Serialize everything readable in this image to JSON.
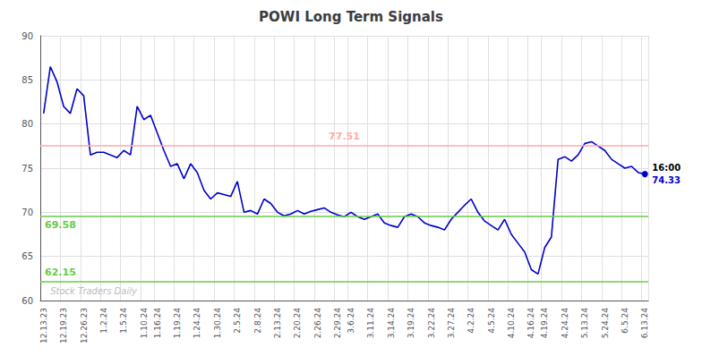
{
  "chart_data": {
    "type": "line",
    "title": "POWI Long Term Signals",
    "color": "#0000cc",
    "categories": [
      "12.13.23",
      null,
      null,
      "12.19.23",
      null,
      null,
      "12.26.23",
      null,
      null,
      "1.2.24",
      null,
      null,
      "1.5.24",
      null,
      null,
      "1.10.24",
      null,
      "1.16.24",
      null,
      null,
      "1.19.24",
      null,
      null,
      "1.24.24",
      null,
      null,
      "1.30.24",
      null,
      null,
      "2.5.24",
      null,
      null,
      "2.8.24",
      null,
      null,
      "2.13.24",
      null,
      null,
      "2.20.24",
      null,
      null,
      "2.26.24",
      null,
      null,
      "2.29.24",
      null,
      "3.6.24",
      null,
      null,
      "3.11.24",
      null,
      null,
      "3.14.24",
      null,
      null,
      "3.19.24",
      null,
      null,
      "3.22.24",
      null,
      null,
      "3.27.24",
      null,
      null,
      "4.2.24",
      null,
      null,
      "4.5.24",
      null,
      null,
      "4.10.24",
      null,
      null,
      "4.16.24",
      null,
      "4.19.24",
      null,
      null,
      "4.24.24",
      null,
      null,
      "5.13.24",
      null,
      null,
      "5.24.24",
      null,
      null,
      "6.5.24",
      null,
      null,
      "6.13.24"
    ],
    "values": [
      81.2,
      86.5,
      84.8,
      82.0,
      81.2,
      84.0,
      83.2,
      76.5,
      76.8,
      76.8,
      76.5,
      76.2,
      77.0,
      76.5,
      82.0,
      80.5,
      81.0,
      79.0,
      77.0,
      75.2,
      75.5,
      73.8,
      75.5,
      74.5,
      72.5,
      71.5,
      72.2,
      72.0,
      71.8,
      73.5,
      70.0,
      70.2,
      69.8,
      71.5,
      71.0,
      70.0,
      69.6,
      69.8,
      70.2,
      69.8,
      70.1,
      70.3,
      70.5,
      70.0,
      69.7,
      69.5,
      70.0,
      69.5,
      69.2,
      69.5,
      69.8,
      68.8,
      68.5,
      68.3,
      69.5,
      69.8,
      69.5,
      68.8,
      68.5,
      68.3,
      68.0,
      69.2,
      70.0,
      70.8,
      71.5,
      70.0,
      69.0,
      68.5,
      68.0,
      69.2,
      67.5,
      66.5,
      65.5,
      63.5,
      63.0,
      66.0,
      67.2,
      76.0,
      76.3,
      75.8,
      76.5,
      77.8,
      78.0,
      77.5,
      77.0,
      76.0,
      75.5,
      75.0,
      75.2,
      74.5,
      74.33
    ],
    "reference_lines": [
      {
        "value": 77.51,
        "label": "77.51",
        "color": "#ffaaaa"
      },
      {
        "value": 69.58,
        "label": "69.58",
        "color": "#66cc44"
      },
      {
        "value": 62.15,
        "label": "62.15",
        "color": "#66cc44"
      }
    ],
    "end_labels": [
      "16:00",
      "74.33"
    ],
    "watermark": "Stock Traders Daily",
    "ylim": [
      60,
      90
    ],
    "yticks": [
      60,
      65,
      70,
      75,
      80,
      85,
      90
    ],
    "grid": true
  }
}
